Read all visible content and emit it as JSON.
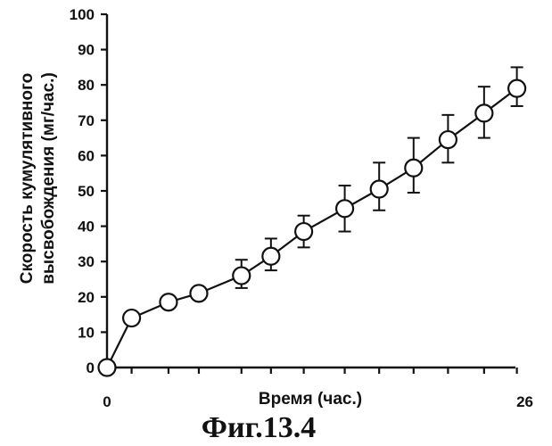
{
  "chart_data": {
    "type": "line",
    "title": "",
    "caption": "Фиг.13.4",
    "xlabel": "Время (час.)",
    "ylabel_line1": "Скорость кумулятивного",
    "ylabel_line2": "высвобождения (мг/час.)",
    "xlim": [
      0,
      26
    ],
    "ylim": [
      0,
      100
    ],
    "x_tick_labels": [
      "0",
      "26"
    ],
    "y_ticks": [
      0,
      10,
      20,
      30,
      40,
      50,
      60,
      70,
      80,
      90,
      100
    ],
    "y_tick_labels": [
      "0",
      "10",
      "20",
      "30",
      "40",
      "50",
      "60",
      "70",
      "80",
      "90",
      "100"
    ],
    "grid": false,
    "series": [
      {
        "x": [
          0,
          1.5,
          3.75,
          5.6,
          8.2,
          10,
          12,
          14.5,
          16.6,
          18.7,
          20.8,
          23,
          25
        ],
        "values": [
          0,
          14,
          18.5,
          21,
          26,
          31.5,
          38.5,
          45,
          50.5,
          56.5,
          64.5,
          72,
          79
        ],
        "error_low": [
          null,
          null,
          null,
          null,
          22.5,
          27.5,
          34,
          38.5,
          44.5,
          49.5,
          58,
          65,
          74
        ],
        "error_high": [
          null,
          null,
          null,
          null,
          30.5,
          36.5,
          43,
          51.5,
          58,
          65,
          71.5,
          79.5,
          85
        ]
      }
    ]
  }
}
